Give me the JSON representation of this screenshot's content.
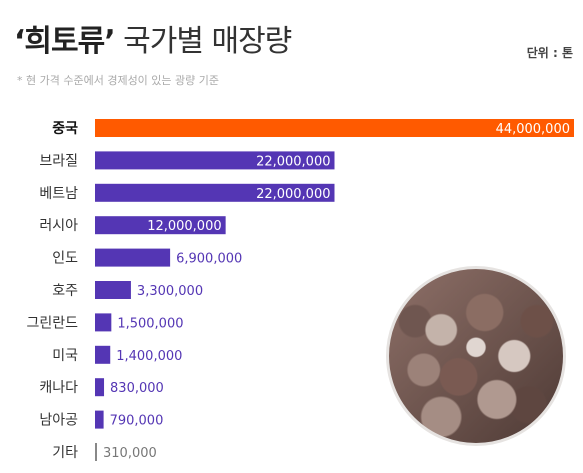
{
  "header": {
    "title_bold": "‘희토류’",
    "title_rest": "국가별 매장량",
    "unit": "단위 : 톤",
    "note": "* 현 가격 수준에서 경제성이 있는 광량 기준"
  },
  "colors": {
    "highlight": "#ff5a00",
    "bar": "#5436b4",
    "value_on_bar": "#ffffff",
    "value_outside": "#5436b4",
    "small_bar": "#888888"
  },
  "image": {
    "icon": "rare-earth-ore-rocks"
  },
  "chart_data": {
    "type": "bar",
    "orientation": "horizontal",
    "categories": [
      "중국",
      "브라질",
      "베트남",
      "러시아",
      "인도",
      "호주",
      "그린란드",
      "미국",
      "캐나다",
      "남아공",
      "기타"
    ],
    "values": [
      44000000,
      22000000,
      22000000,
      12000000,
      6900000,
      3300000,
      1500000,
      1400000,
      830000,
      790000,
      310000
    ],
    "labels": [
      "44,000,000",
      "22,000,000",
      "22,000,000",
      "12,000,000",
      "6,900,000",
      "3,300,000",
      "1,500,000",
      "1,400,000",
      "830,000",
      "790,000",
      "310,000"
    ],
    "highlight_index": 0,
    "xlim": [
      0,
      44000000
    ]
  }
}
